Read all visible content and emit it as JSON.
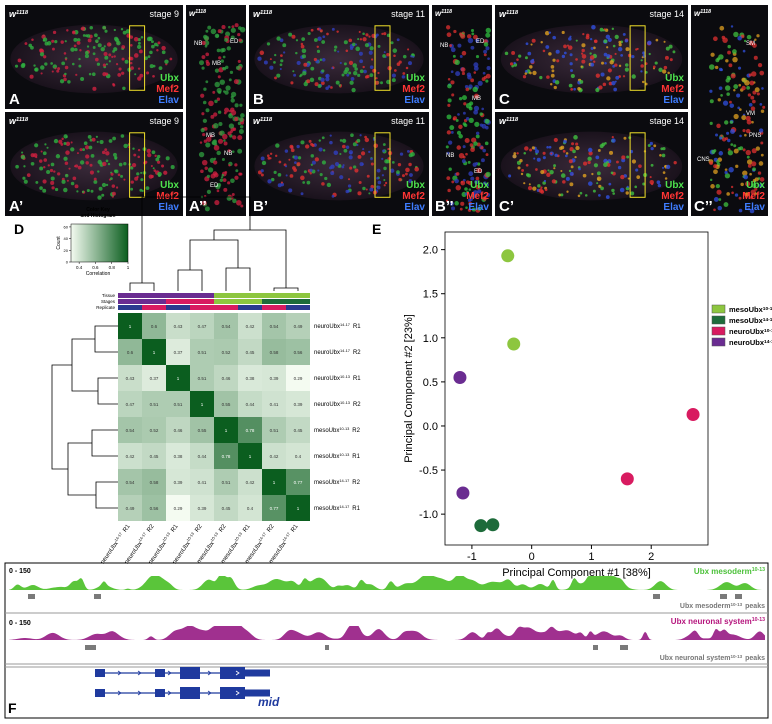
{
  "microscopy": [
    {
      "letter": "A",
      "genotype": "w",
      "genotype_sup": "1118",
      "stage": "stage 9"
    },
    {
      "letter": "A’",
      "genotype": "w",
      "genotype_sup": "1118",
      "stage": "stage 9"
    },
    {
      "letter": "B",
      "genotype": "w",
      "genotype_sup": "1118",
      "stage": "stage 11"
    },
    {
      "letter": "B’",
      "genotype": "w",
      "genotype_sup": "1118",
      "stage": "stage 11"
    },
    {
      "letter": "C",
      "genotype": "w",
      "genotype_sup": "1118",
      "stage": "stage 14"
    },
    {
      "letter": "C’",
      "genotype": "w",
      "genotype_sup": "1118",
      "stage": "stage 14"
    }
  ],
  "closeups": [
    {
      "letter": "A’’",
      "genotype": "w",
      "genotype_sup": "1118",
      "labels": [
        "NB",
        "ED",
        "MB",
        "MB",
        "NB",
        "ED"
      ]
    },
    {
      "letter": "B’’",
      "genotype": "w",
      "genotype_sup": "1118",
      "labels": [
        "NB",
        "ED",
        "MB",
        "NB",
        "ED"
      ]
    },
    {
      "letter": "C’’",
      "genotype": "w",
      "genotype_sup": "1118",
      "labels": [
        "SM",
        "VM",
        "PNS",
        "CNS"
      ]
    }
  ],
  "channels": [
    "Ubx",
    "Mef2",
    "Elav"
  ],
  "heatmap": {
    "letter": "D",
    "key_title": [
      "Color Key",
      "and Histogram"
    ],
    "key_xlabel": "Correlation",
    "key_ylabel": "Count",
    "key_xlim": [
      0.3,
      1
    ],
    "key_xticks": [
      0.4,
      0.6,
      0.8,
      1
    ],
    "key_ylim": [
      0,
      65
    ],
    "key_yticks": [
      0,
      20,
      40,
      60
    ],
    "annotations": [
      "Tissue",
      "Stages",
      "Replicate"
    ],
    "samples": [
      {
        "name": "neuroUbx",
        "stage": "14-17",
        "rep": "R1"
      },
      {
        "name": "neuroUbx",
        "stage": "14-17",
        "rep": "R2"
      },
      {
        "name": "neuroUbx",
        "stage": "10-13",
        "rep": "R1"
      },
      {
        "name": "neuroUbx",
        "stage": "10-13",
        "rep": "R2"
      },
      {
        "name": "mesoUbx",
        "stage": "10-13",
        "rep": "R2"
      },
      {
        "name": "mesoUbx",
        "stage": "10-13",
        "rep": "R1"
      },
      {
        "name": "mesoUbx",
        "stage": "14-17",
        "rep": "R2"
      },
      {
        "name": "mesoUbx",
        "stage": "14-17",
        "rep": "R1"
      }
    ],
    "matrix": [
      [
        1,
        0.6,
        0.43,
        0.47,
        0.54,
        0.42,
        0.54,
        0.49
      ],
      [
        0.6,
        1,
        0.37,
        0.51,
        0.52,
        0.45,
        0.58,
        0.56
      ],
      [
        0.43,
        0.37,
        1,
        0.51,
        0.46,
        0.38,
        0.39,
        0.29
      ],
      [
        0.47,
        0.51,
        0.51,
        1,
        0.55,
        0.44,
        0.41,
        0.39
      ],
      [
        0.54,
        0.52,
        0.46,
        0.55,
        1,
        0.78,
        0.51,
        0.45
      ],
      [
        0.42,
        0.45,
        0.38,
        0.44,
        0.78,
        1,
        0.42,
        0.4
      ],
      [
        0.54,
        0.58,
        0.39,
        0.41,
        0.51,
        0.42,
        1,
        0.77
      ],
      [
        0.49,
        0.56,
        0.29,
        0.39,
        0.45,
        0.4,
        0.77,
        1
      ]
    ]
  },
  "chart_data": {
    "type": "scatter",
    "letter": "E",
    "x_label": "Principal Component #1 [38%]",
    "y_label": "Principal Component #2 [23%]",
    "xlim": [
      -1.45,
      2.95
    ],
    "ylim": [
      -1.35,
      2.2
    ],
    "xticks": [
      -1,
      0,
      1,
      2
    ],
    "yticks": [
      {
        "value": -1,
        "label": "-1.0"
      },
      {
        "value": -0.5,
        "label": "-0.5"
      },
      {
        "value": 0,
        "label": "0.0"
      },
      {
        "value": 0.5,
        "label": "0.5"
      },
      {
        "value": 1,
        "label": "1.0"
      },
      {
        "value": 1.5,
        "label": "1.5"
      },
      {
        "value": 2,
        "label": "2.0"
      }
    ],
    "series": [
      {
        "name": "mesoUbx",
        "name_sup": "10-13",
        "color": "#8dc63f",
        "x": [
          -0.4,
          -0.3
        ],
        "values": [
          1.93,
          0.93
        ]
      },
      {
        "name": "mesoUbx",
        "name_sup": "14-17",
        "color": "#1d6b3a",
        "x": [
          -0.85,
          -0.65
        ],
        "values": [
          -1.13,
          -1.12
        ]
      },
      {
        "name": "neuroUbx",
        "name_sup": "10-13",
        "color": "#d81b60",
        "x": [
          2.7,
          1.6
        ],
        "values": [
          0.13,
          -0.6
        ]
      },
      {
        "name": "neuroUbx",
        "name_sup": "14-17",
        "color": "#6a2c91",
        "x": [
          -1.2,
          -1.15
        ],
        "values": [
          0.55,
          -0.76
        ]
      }
    ]
  },
  "tracks": {
    "letter": "F",
    "range": "0 - 150",
    "meso": "Ubx mesoderm",
    "meso_peaks": "Ubx mesoderm",
    "neuro": "Ubx neuronal system",
    "neuro_peaks": "Ubx neuronal system",
    "stage": "10-13",
    "peaks": "peaks",
    "gene": "mid"
  }
}
